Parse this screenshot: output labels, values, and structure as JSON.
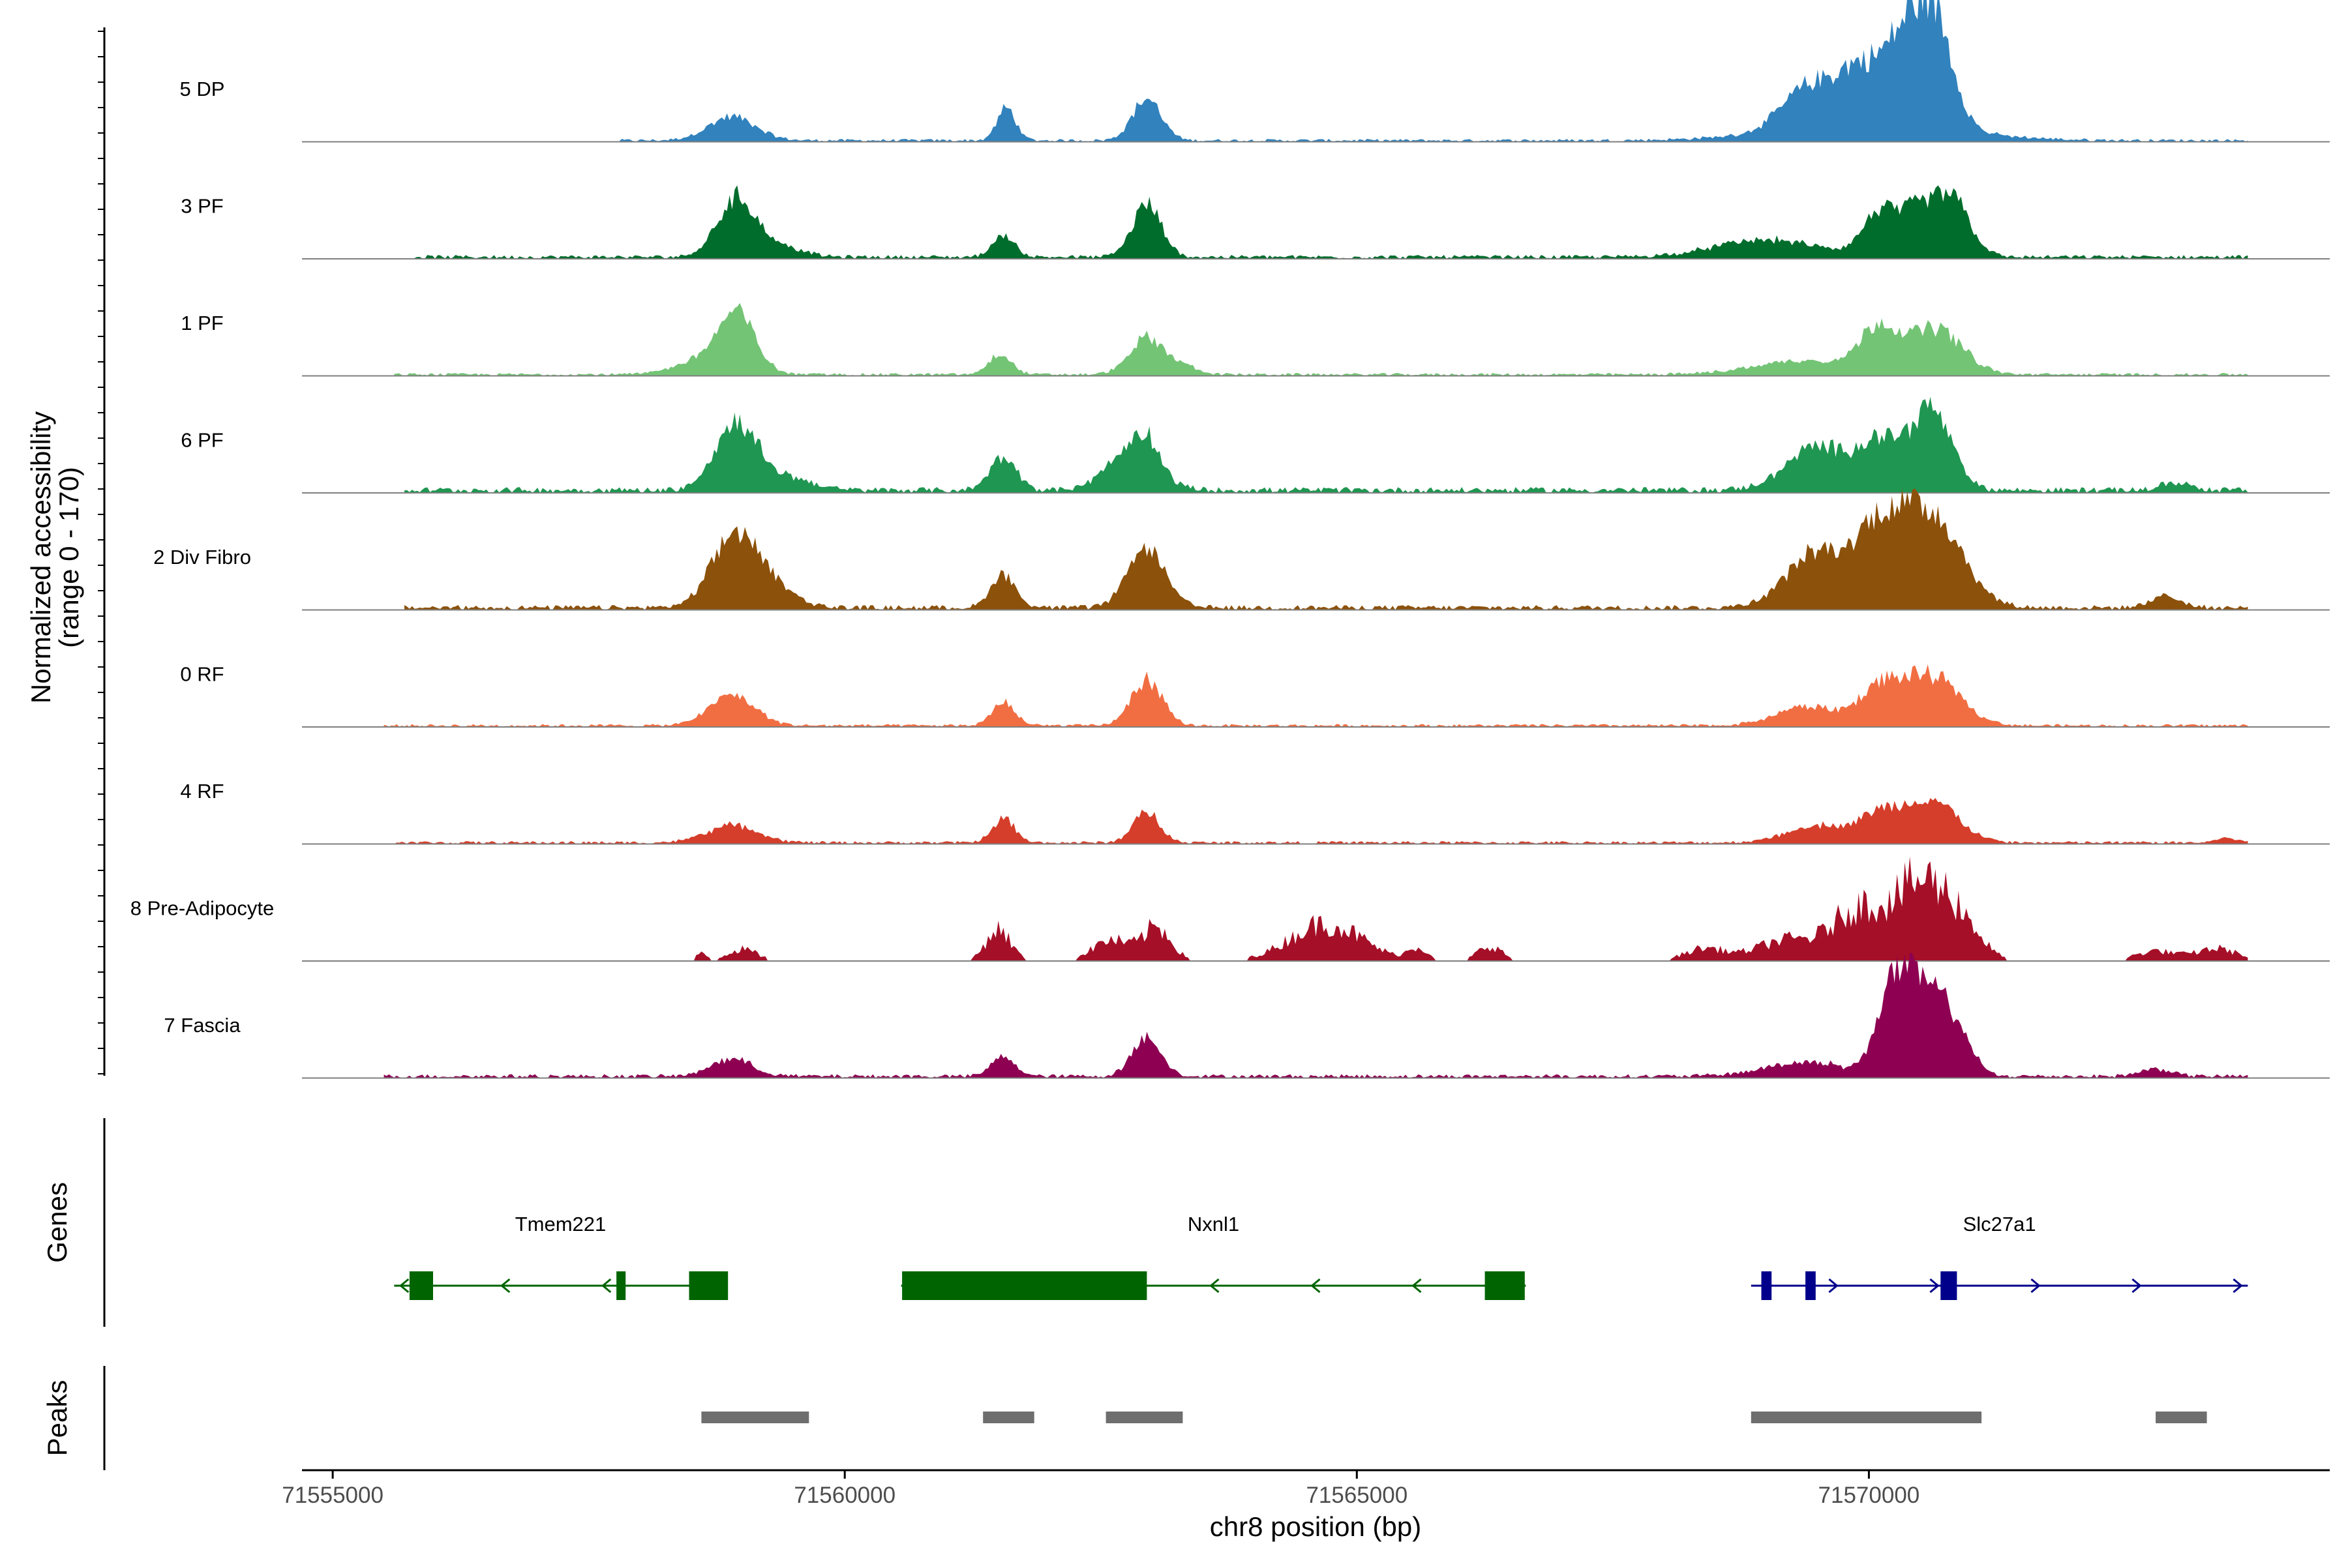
{
  "chart_data": {
    "type": "area",
    "title": "",
    "ylabel_line1": "Normalized accessibility",
    "ylabel_line2": "(range 0 - 170)",
    "ylim": [
      0,
      170
    ],
    "xlabel": "chr8 position (bp)",
    "xlim": [
      71554700,
      71574500
    ],
    "xticks": [
      71555000,
      71560000,
      71565000,
      71570000
    ],
    "xtick_labels": [
      "71555000",
      "71560000",
      "71565000",
      "71570000"
    ],
    "tracks": [
      {
        "name": "5 DP",
        "color": "#3182BD",
        "noise": 3,
        "sparse": false,
        "xstart": 71557800,
        "xend": 71573700,
        "peaks": [
          [
            71558900,
            25,
            230
          ],
          [
            71561580,
            34,
            90
          ],
          [
            71562950,
            44,
            140
          ],
          [
            71569400,
            40,
            250
          ],
          [
            71569900,
            52,
            220
          ],
          [
            71570350,
            80,
            200
          ],
          [
            71570650,
            102,
            180
          ],
          [
            71570000,
            20,
            800
          ]
        ]
      },
      {
        "name": "3 PF",
        "color": "#006D2C",
        "noise": 4,
        "sparse": false,
        "xstart": 71555800,
        "xend": 71573700,
        "peaks": [
          [
            71558950,
            62,
            190
          ],
          [
            71559400,
            10,
            200
          ],
          [
            71561550,
            22,
            110
          ],
          [
            71562950,
            55,
            140
          ],
          [
            71569000,
            18,
            500
          ],
          [
            71570100,
            45,
            160
          ],
          [
            71570450,
            42,
            160
          ],
          [
            71570800,
            62,
            180
          ]
        ]
      },
      {
        "name": "1 PF",
        "color": "#74C476",
        "noise": 3,
        "sparse": false,
        "xstart": 71555600,
        "xend": 71573700,
        "peaks": [
          [
            71558950,
            60,
            180
          ],
          [
            71558600,
            15,
            250
          ],
          [
            71561520,
            22,
            110
          ],
          [
            71562950,
            38,
            170
          ],
          [
            71563300,
            8,
            150
          ],
          [
            71569400,
            15,
            500
          ],
          [
            71570100,
            45,
            180
          ],
          [
            71570650,
            48,
            260
          ]
        ]
      },
      {
        "name": "6 PF",
        "color": "#1F9651",
        "noise": 6,
        "sparse": false,
        "xstart": 71555700,
        "xend": 71573700,
        "peaks": [
          [
            71558950,
            72,
            210
          ],
          [
            71559500,
            12,
            200
          ],
          [
            71561550,
            35,
            130
          ],
          [
            71562800,
            40,
            240
          ],
          [
            71562950,
            28,
            120
          ],
          [
            71569500,
            45,
            300
          ],
          [
            71570100,
            48,
            200
          ],
          [
            71570600,
            85,
            200
          ],
          [
            71573000,
            8,
            150
          ]
        ]
      },
      {
        "name": "2 Div Fibro",
        "color": "#8C510A",
        "noise": 5,
        "sparse": false,
        "xstart": 71555700,
        "xend": 71573700,
        "peaks": [
          [
            71558950,
            80,
            230
          ],
          [
            71559400,
            12,
            200
          ],
          [
            71561550,
            35,
            120
          ],
          [
            71562950,
            62,
            180
          ],
          [
            71569500,
            58,
            300
          ],
          [
            71570100,
            70,
            220
          ],
          [
            71570600,
            100,
            300
          ],
          [
            71572900,
            12,
            150
          ]
        ]
      },
      {
        "name": "0 RF",
        "color": "#F16E43",
        "noise": 3,
        "sparse": false,
        "xstart": 71555500,
        "xend": 71573700,
        "peaks": [
          [
            71558900,
            32,
            220
          ],
          [
            71561550,
            25,
            110
          ],
          [
            71562950,
            48,
            150
          ],
          [
            71569400,
            20,
            300
          ],
          [
            71570100,
            35,
            200
          ],
          [
            71570600,
            52,
            280
          ]
        ]
      },
      {
        "name": "4 RF",
        "color": "#D53E2A",
        "noise": 3,
        "sparse": false,
        "xstart": 71555600,
        "xend": 71573700,
        "peaks": [
          [
            71558900,
            18,
            250
          ],
          [
            71561550,
            25,
            110
          ],
          [
            71562950,
            32,
            130
          ],
          [
            71569500,
            18,
            300
          ],
          [
            71570100,
            26,
            200
          ],
          [
            71570600,
            45,
            260
          ],
          [
            71573500,
            5,
            100
          ]
        ]
      },
      {
        "name": "8 Pre-Adipocyte",
        "color": "#A50F27",
        "noise": 6,
        "sparse": true,
        "xstart": 71558500,
        "xend": 71573700,
        "peaks": [
          [
            71558600,
            10,
            50
          ],
          [
            71559000,
            14,
            150
          ],
          [
            71561500,
            38,
            120
          ],
          [
            71562600,
            25,
            180
          ],
          [
            71563050,
            40,
            140
          ],
          [
            71564700,
            45,
            350
          ],
          [
            71565600,
            15,
            100
          ],
          [
            71566300,
            18,
            120
          ],
          [
            71568400,
            15,
            200
          ],
          [
            71569200,
            25,
            300
          ],
          [
            71569900,
            60,
            250
          ],
          [
            71570500,
            90,
            250
          ],
          [
            71570900,
            40,
            200
          ],
          [
            71572800,
            12,
            200
          ],
          [
            71573400,
            15,
            200
          ]
        ]
      },
      {
        "name": "7 Fascia",
        "color": "#8E0152",
        "noise": 4,
        "sparse": false,
        "xstart": 71555500,
        "xend": 71573700,
        "peaks": [
          [
            71558900,
            18,
            200
          ],
          [
            71561550,
            22,
            110
          ],
          [
            71562950,
            40,
            140
          ],
          [
            71569400,
            15,
            400
          ],
          [
            71570200,
            70,
            140
          ],
          [
            71570500,
            95,
            200
          ],
          [
            71570850,
            45,
            150
          ],
          [
            71572800,
            8,
            150
          ]
        ]
      }
    ],
    "genes": [
      {
        "name": "Tmem221",
        "strand": "-",
        "start": 71555600,
        "end": 71558850,
        "color": "#006400",
        "exons": [
          [
            71555750,
            71555980
          ],
          [
            71557770,
            71557860
          ],
          [
            71558480,
            71558860
          ]
        ]
      },
      {
        "name": "Nxnl1",
        "strand": "-",
        "start": 71560550,
        "end": 71566650,
        "color": "#006400",
        "exons": [
          [
            71560560,
            71562950
          ],
          [
            71566250,
            71566640
          ]
        ]
      },
      {
        "name": "Slc27a1",
        "strand": "+",
        "start": 71568850,
        "end": 71573700,
        "color": "#00008B",
        "exons": [
          [
            71568950,
            71569050
          ],
          [
            71569380,
            71569480
          ],
          [
            71570700,
            71570860
          ]
        ]
      }
    ],
    "peaks_label": "Peaks",
    "genes_label": "Genes",
    "peak_color": "#6E6E6E",
    "peak_regions": [
      [
        71558600,
        71559650
      ],
      [
        71561350,
        71561850
      ],
      [
        71562550,
        71563300
      ],
      [
        71568850,
        71571100
      ],
      [
        71572800,
        71573300
      ]
    ]
  }
}
